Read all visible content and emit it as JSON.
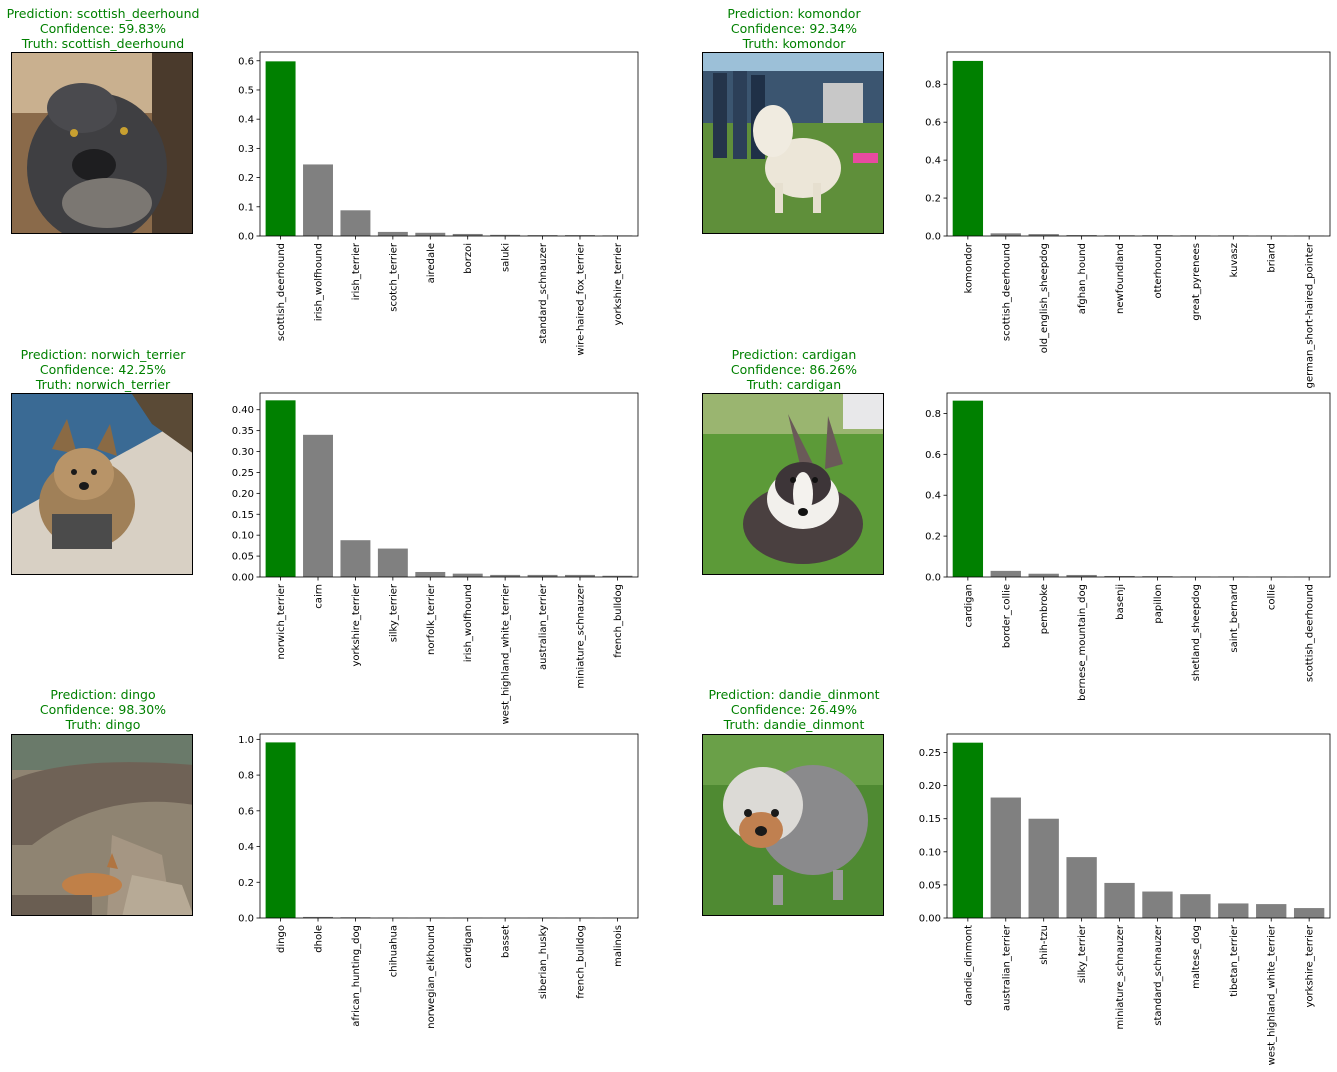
{
  "colors": {
    "title": "#008000",
    "bar_top": "#008000",
    "bar_other": "#808080"
  },
  "panels": [
    {
      "prediction": "Prediction: scottish_deerhound",
      "confidence": "Confidence: 59.83%",
      "truth": "Truth: scottish_deerhound",
      "photo_subject": "scottish_deerhound"
    },
    {
      "prediction": "Prediction: komondor",
      "confidence": "Confidence: 92.34%",
      "truth": "Truth: komondor",
      "photo_subject": "komondor"
    },
    {
      "prediction": "Prediction: norwich_terrier",
      "confidence": "Confidence: 42.25%",
      "truth": "Truth: norwich_terrier",
      "photo_subject": "norwich_terrier"
    },
    {
      "prediction": "Prediction: cardigan",
      "confidence": "Confidence: 86.26%",
      "truth": "Truth: cardigan",
      "photo_subject": "cardigan"
    },
    {
      "prediction": "Prediction: dingo",
      "confidence": "Confidence: 98.30%",
      "truth": "Truth: dingo",
      "photo_subject": "dingo"
    },
    {
      "prediction": "Prediction: dandie_dinmont",
      "confidence": "Confidence: 26.49%",
      "truth": "Truth: dandie_dinmont",
      "photo_subject": "dandie_dinmont"
    }
  ],
  "chart_data": [
    {
      "type": "bar",
      "categories": [
        "scottish_deerhound",
        "irish_wolfhound",
        "irish_terrier",
        "scotch_terrier",
        "airedale",
        "borzoi",
        "saluki",
        "standard_schnauzer",
        "wire-haired_fox_terrier",
        "yorkshire_terrier"
      ],
      "values": [
        0.598,
        0.245,
        0.088,
        0.014,
        0.011,
        0.007,
        0.004,
        0.003,
        0.003,
        0.002
      ],
      "ylim": [
        0,
        0.63
      ],
      "yticks": [
        "0.0",
        "0.1",
        "0.2",
        "0.3",
        "0.4",
        "0.5",
        "0.6"
      ],
      "ytick_values": [
        0,
        0.1,
        0.2,
        0.3,
        0.4,
        0.5,
        0.6
      ]
    },
    {
      "type": "bar",
      "categories": [
        "komondor",
        "scottish_deerhound",
        "old_english_sheepdog",
        "afghan_hound",
        "newfoundland",
        "otterhound",
        "great_pyrenees",
        "kuvasz",
        "briard",
        "german_short-haired_pointer"
      ],
      "values": [
        0.923,
        0.014,
        0.01,
        0.005,
        0.004,
        0.004,
        0.003,
        0.003,
        0.002,
        0.002
      ],
      "ylim": [
        0,
        0.97
      ],
      "yticks": [
        "0.0",
        "0.2",
        "0.4",
        "0.6",
        "0.8"
      ],
      "ytick_values": [
        0,
        0.2,
        0.4,
        0.6,
        0.8
      ]
    },
    {
      "type": "bar",
      "categories": [
        "norwich_terrier",
        "cairn",
        "yorkshire_terrier",
        "silky_terrier",
        "norfolk_terrier",
        "irish_wolfhound",
        "west_highland_white_terrier",
        "australian_terrier",
        "miniature_schnauzer",
        "french_bulldog"
      ],
      "values": [
        0.4225,
        0.34,
        0.088,
        0.068,
        0.012,
        0.008,
        0.005,
        0.005,
        0.005,
        0.003
      ],
      "ylim": [
        0,
        0.44
      ],
      "yticks": [
        "0.00",
        "0.05",
        "0.10",
        "0.15",
        "0.20",
        "0.25",
        "0.30",
        "0.35",
        "0.40"
      ],
      "ytick_values": [
        0,
        0.05,
        0.1,
        0.15,
        0.2,
        0.25,
        0.3,
        0.35,
        0.4
      ]
    },
    {
      "type": "bar",
      "categories": [
        "cardigan",
        "border_collie",
        "pembroke",
        "bernese_mountain_dog",
        "basenji",
        "papillon",
        "shetland_sheepdog",
        "saint_bernard",
        "collie",
        "scottish_deerhound"
      ],
      "values": [
        0.8626,
        0.03,
        0.016,
        0.01,
        0.005,
        0.004,
        0.002,
        0.002,
        0.001,
        0.001
      ],
      "ylim": [
        0,
        0.9
      ],
      "yticks": [
        "0.0",
        "0.2",
        "0.4",
        "0.6",
        "0.8"
      ],
      "ytick_values": [
        0,
        0.2,
        0.4,
        0.6,
        0.8
      ]
    },
    {
      "type": "bar",
      "categories": [
        "dingo",
        "dhole",
        "african_hunting_dog",
        "chihuahua",
        "norwegian_elkhound",
        "cardigan",
        "basset",
        "siberian_husky",
        "french_bulldog",
        "malinois"
      ],
      "values": [
        0.983,
        0.006,
        0.004,
        0.001,
        0.001,
        0.001,
        0.001,
        0.001,
        0.001,
        0.001
      ],
      "ylim": [
        0,
        1.03
      ],
      "yticks": [
        "0.0",
        "0.2",
        "0.4",
        "0.6",
        "0.8",
        "1.0"
      ],
      "ytick_values": [
        0,
        0.2,
        0.4,
        0.6,
        0.8,
        1.0
      ]
    },
    {
      "type": "bar",
      "categories": [
        "dandie_dinmont",
        "australian_terrier",
        "shih-tzu",
        "silky_terrier",
        "miniature_schnauzer",
        "standard_schnauzer",
        "maltese_dog",
        "tibetan_terrier",
        "west_highland_white_terrier",
        "yorkshire_terrier"
      ],
      "values": [
        0.2649,
        0.182,
        0.15,
        0.092,
        0.053,
        0.04,
        0.036,
        0.022,
        0.021,
        0.015
      ],
      "ylim": [
        0,
        0.278
      ],
      "yticks": [
        "0.00",
        "0.05",
        "0.10",
        "0.15",
        "0.20",
        "0.25"
      ],
      "ytick_values": [
        0,
        0.05,
        0.1,
        0.15,
        0.2,
        0.25
      ]
    }
  ]
}
